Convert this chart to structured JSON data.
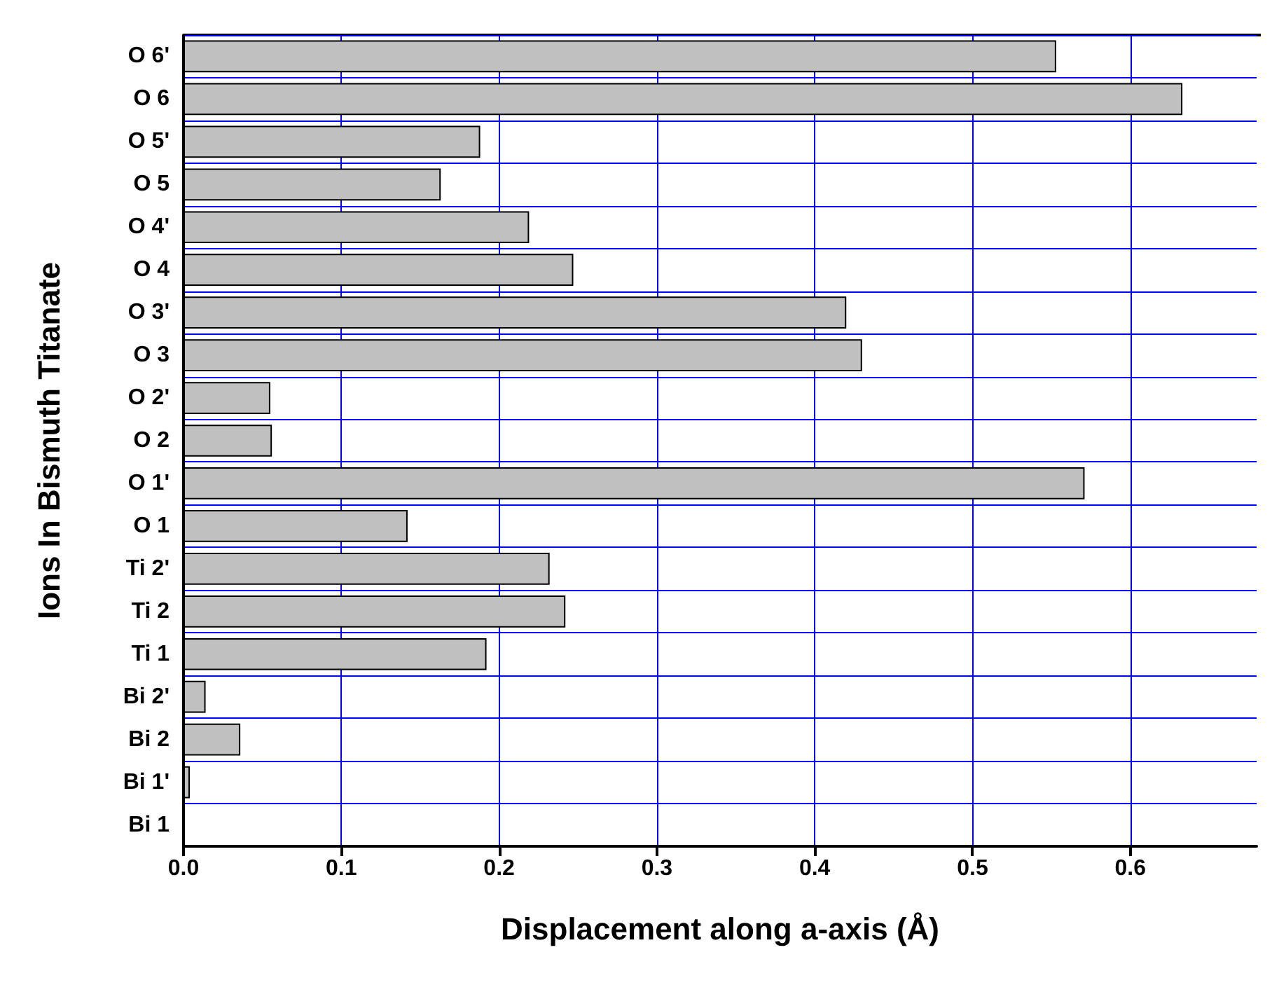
{
  "chart_data": {
    "type": "bar",
    "orientation": "horizontal",
    "xlabel": "Displacement along a-axis (Å)",
    "ylabel": "Ions In Bismuth Titanate",
    "categories": [
      "O 6'",
      "O 6",
      "O 5'",
      "O 5",
      "O 4'",
      "O 4",
      "O 3'",
      "O 3",
      "O 2'",
      "O 2",
      "O 1'",
      "O 1",
      "Ti 2'",
      "Ti 2",
      "Ti 1",
      "Bi 2'",
      "Bi 2",
      "Bi 1'",
      "Bi 1"
    ],
    "values": [
      0.553,
      0.633,
      0.188,
      0.163,
      0.219,
      0.247,
      0.42,
      0.43,
      0.055,
      0.056,
      0.571,
      0.142,
      0.232,
      0.242,
      0.192,
      0.014,
      0.036,
      0.004,
      0
    ],
    "color": "#c0c0c0",
    "xlim": [
      0,
      0.68
    ],
    "xticks": [
      {
        "value": 0,
        "label": "0.0"
      },
      0.1,
      0.2,
      0.3,
      0.4,
      0.5,
      0.6
    ],
    "grid": true
  }
}
